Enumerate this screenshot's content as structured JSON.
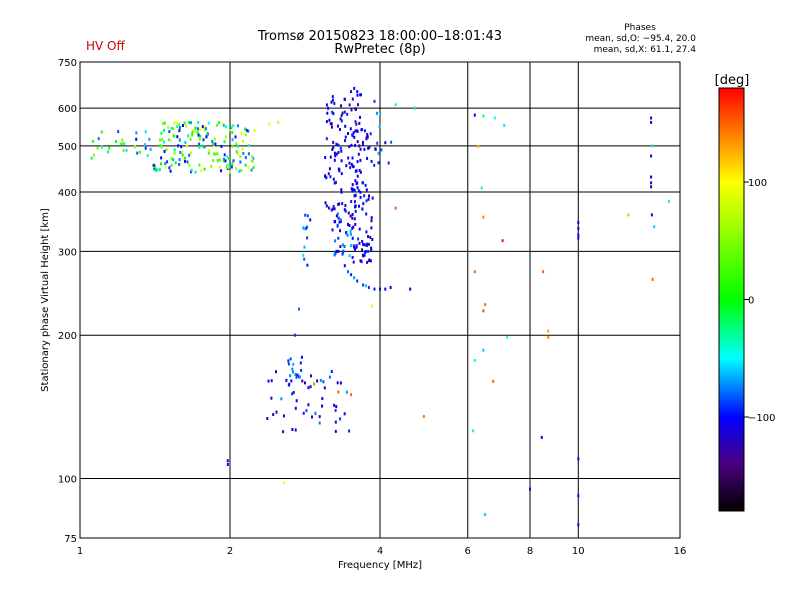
{
  "header": {
    "status": "HV Off",
    "status_color": "#cc0000",
    "title_line1": "Tromsø 20150823 18:00:00–18:01:43",
    "title_line2": "RwPretec (8p)",
    "phase_title": "Phases",
    "phase_line_o": "mean, sd,O: −95.4, 20.0",
    "phase_line_x": "mean, sd,X: 61.1, 27.4"
  },
  "chart_data": {
    "type": "scatter",
    "title": "Tromsø 20150823 18:00:00–18:01:43",
    "subtitle": "RwPretec (8p)",
    "xlabel": "Frequency [MHz]",
    "ylabel": "Stationary phase Virtual Height [km]",
    "x_scale": "log",
    "y_scale": "log",
    "xlim": [
      1,
      16
    ],
    "ylim": [
      75,
      750
    ],
    "x_ticks": [
      1,
      2,
      4,
      6,
      8,
      10,
      16
    ],
    "x_tick_labels": [
      "1",
      "2",
      "4",
      "6",
      "8",
      "10",
      "16"
    ],
    "y_ticks": [
      75,
      100,
      200,
      300,
      400,
      500,
      600,
      750
    ],
    "y_tick_labels": [
      "75",
      "100",
      "200",
      "300",
      "400",
      "500",
      "600",
      "750"
    ],
    "grid": true,
    "colorbar": {
      "label": "[deg]",
      "range": [
        -180,
        180
      ],
      "ticks": [
        100,
        0,
        -100
      ],
      "tick_labels": [
        "100",
        "0",
        "−100"
      ],
      "stops": [
        {
          "v": -180,
          "c": "#000000"
        },
        {
          "v": -140,
          "c": "#4b0082"
        },
        {
          "v": -100,
          "c": "#0000ff"
        },
        {
          "v": -50,
          "c": "#00ffff"
        },
        {
          "v": 0,
          "c": "#00ff00"
        },
        {
          "v": 100,
          "c": "#ffff00"
        },
        {
          "v": 140,
          "c": "#ff8000"
        },
        {
          "v": 180,
          "c": "#ff0000"
        }
      ]
    },
    "clusters": [
      {
        "n": 180,
        "f": [
          1.4,
          2.25
        ],
        "h": [
          440,
          560
        ],
        "p": [
          -110,
          100
        ],
        "seed": 1
      },
      {
        "n": 30,
        "f": [
          1.05,
          1.4
        ],
        "h": [
          470,
          540
        ],
        "p": [
          -110,
          60
        ],
        "seed": 2
      },
      {
        "n": 130,
        "f": [
          3.1,
          3.7
        ],
        "h": [
          330,
          640
        ],
        "p": [
          -130,
          -90
        ],
        "seed": 3
      },
      {
        "n": 90,
        "f": [
          3.5,
          3.9
        ],
        "h": [
          280,
          560
        ],
        "p": [
          -130,
          -90
        ],
        "seed": 4
      },
      {
        "n": 30,
        "f": [
          3.2,
          3.5
        ],
        "h": [
          290,
          360
        ],
        "p": [
          -120,
          -60
        ],
        "seed": 5
      },
      {
        "n": 50,
        "f": [
          2.35,
          3.5
        ],
        "h": [
          125,
          170
        ],
        "p": [
          -130,
          -70
        ],
        "seed": 6
      },
      {
        "n": 15,
        "f": [
          2.6,
          2.8
        ],
        "h": [
          160,
          180
        ],
        "p": [
          -100,
          -60
        ],
        "seed": 7
      },
      {
        "n": 12,
        "f": [
          2.8,
          2.9
        ],
        "h": [
          280,
          360
        ],
        "p": [
          -110,
          -40
        ],
        "seed": 8
      },
      {
        "n": 12,
        "f": [
          3.9,
          4.25
        ],
        "h": [
          450,
          600
        ],
        "p": [
          -120,
          -60
        ],
        "seed": 9
      }
    ],
    "points": [
      {
        "f": 3.3,
        "h": 300,
        "p": -100
      },
      {
        "f": 3.4,
        "h": 280,
        "p": -100
      },
      {
        "f": 3.5,
        "h": 268,
        "p": -95
      },
      {
        "f": 3.6,
        "h": 260,
        "p": -95
      },
      {
        "f": 3.7,
        "h": 255,
        "p": -90
      },
      {
        "f": 3.8,
        "h": 252,
        "p": -90
      },
      {
        "f": 3.9,
        "h": 250,
        "p": -95
      },
      {
        "f": 4.0,
        "h": 250,
        "p": -100
      },
      {
        "f": 4.1,
        "h": 250,
        "p": -105
      },
      {
        "f": 4.2,
        "h": 252,
        "p": -105
      },
      {
        "f": 4.6,
        "h": 250,
        "p": -110
      },
      {
        "f": 3.45,
        "h": 272,
        "p": -80
      },
      {
        "f": 3.55,
        "h": 264,
        "p": -70
      },
      {
        "f": 3.75,
        "h": 254,
        "p": -60
      },
      {
        "f": 3.55,
        "h": 660,
        "p": -105
      },
      {
        "f": 3.6,
        "h": 650,
        "p": -110
      },
      {
        "f": 3.65,
        "h": 640,
        "p": -100
      },
      {
        "f": 3.5,
        "h": 650,
        "p": -115
      },
      {
        "f": 3.9,
        "h": 620,
        "p": -90
      },
      {
        "f": 4.3,
        "h": 610,
        "p": -30
      },
      {
        "f": 4.3,
        "h": 370,
        "p": 150
      },
      {
        "f": 2.5,
        "h": 560,
        "p": 110
      },
      {
        "f": 2.4,
        "h": 555,
        "p": 90
      },
      {
        "f": 2.75,
        "h": 227,
        "p": -80
      },
      {
        "f": 2.7,
        "h": 200,
        "p": -90
      },
      {
        "f": 2.95,
        "h": 158,
        "p": 140
      },
      {
        "f": 3.1,
        "h": 155,
        "p": -110
      },
      {
        "f": 3.3,
        "h": 152,
        "p": 150
      },
      {
        "f": 3.5,
        "h": 150,
        "p": 150
      },
      {
        "f": 3.85,
        "h": 230,
        "p": 90
      },
      {
        "f": 2.57,
        "h": 98,
        "p": 100
      },
      {
        "f": 4.9,
        "h": 135,
        "p": 140
      },
      {
        "f": 1.98,
        "h": 109,
        "p": -100
      },
      {
        "f": 1.98,
        "h": 107,
        "p": -110
      },
      {
        "f": 6.2,
        "h": 580,
        "p": -100
      },
      {
        "f": 6.45,
        "h": 578,
        "p": -30
      },
      {
        "f": 6.3,
        "h": 498,
        "p": 120
      },
      {
        "f": 6.4,
        "h": 408,
        "p": -40
      },
      {
        "f": 6.45,
        "h": 354,
        "p": 140
      },
      {
        "f": 7.05,
        "h": 316,
        "p": 175
      },
      {
        "f": 6.2,
        "h": 272,
        "p": 150
      },
      {
        "f": 6.5,
        "h": 232,
        "p": 145
      },
      {
        "f": 6.45,
        "h": 225,
        "p": 160
      },
      {
        "f": 6.45,
        "h": 186,
        "p": -60
      },
      {
        "f": 6.2,
        "h": 177,
        "p": -40
      },
      {
        "f": 6.75,
        "h": 160,
        "p": 150
      },
      {
        "f": 6.15,
        "h": 126,
        "p": -40
      },
      {
        "f": 6.5,
        "h": 84,
        "p": -60
      },
      {
        "f": 7.2,
        "h": 198,
        "p": -50
      },
      {
        "f": 6.8,
        "h": 572,
        "p": -50
      },
      {
        "f": 7.1,
        "h": 552,
        "p": -55
      },
      {
        "f": 8.0,
        "h": 95,
        "p": -110
      },
      {
        "f": 8.45,
        "h": 122,
        "p": -110
      },
      {
        "f": 8.5,
        "h": 272,
        "p": 150
      },
      {
        "f": 8.7,
        "h": 204,
        "p": 130
      },
      {
        "f": 8.7,
        "h": 198,
        "p": 140
      },
      {
        "f": 10.0,
        "h": 345,
        "p": -110
      },
      {
        "f": 10.0,
        "h": 335,
        "p": -105
      },
      {
        "f": 10.0,
        "h": 325,
        "p": -100
      },
      {
        "f": 10.0,
        "h": 320,
        "p": -115
      },
      {
        "f": 10.0,
        "h": 110,
        "p": -110
      },
      {
        "f": 10.0,
        "h": 92,
        "p": -110
      },
      {
        "f": 10.0,
        "h": 80,
        "p": -115
      },
      {
        "f": 12.6,
        "h": 358,
        "p": 120
      },
      {
        "f": 14.0,
        "h": 572,
        "p": -110
      },
      {
        "f": 14.0,
        "h": 560,
        "p": -120
      },
      {
        "f": 14.1,
        "h": 500,
        "p": -40
      },
      {
        "f": 14.0,
        "h": 476,
        "p": -110
      },
      {
        "f": 14.0,
        "h": 430,
        "p": -105
      },
      {
        "f": 14.0,
        "h": 418,
        "p": -120
      },
      {
        "f": 14.0,
        "h": 410,
        "p": -130
      },
      {
        "f": 14.05,
        "h": 358,
        "p": -110
      },
      {
        "f": 14.2,
        "h": 338,
        "p": -60
      },
      {
        "f": 14.1,
        "h": 262,
        "p": 150
      },
      {
        "f": 15.2,
        "h": 382,
        "p": -30
      },
      {
        "f": 4.7,
        "h": 600,
        "p": -20
      }
    ]
  }
}
